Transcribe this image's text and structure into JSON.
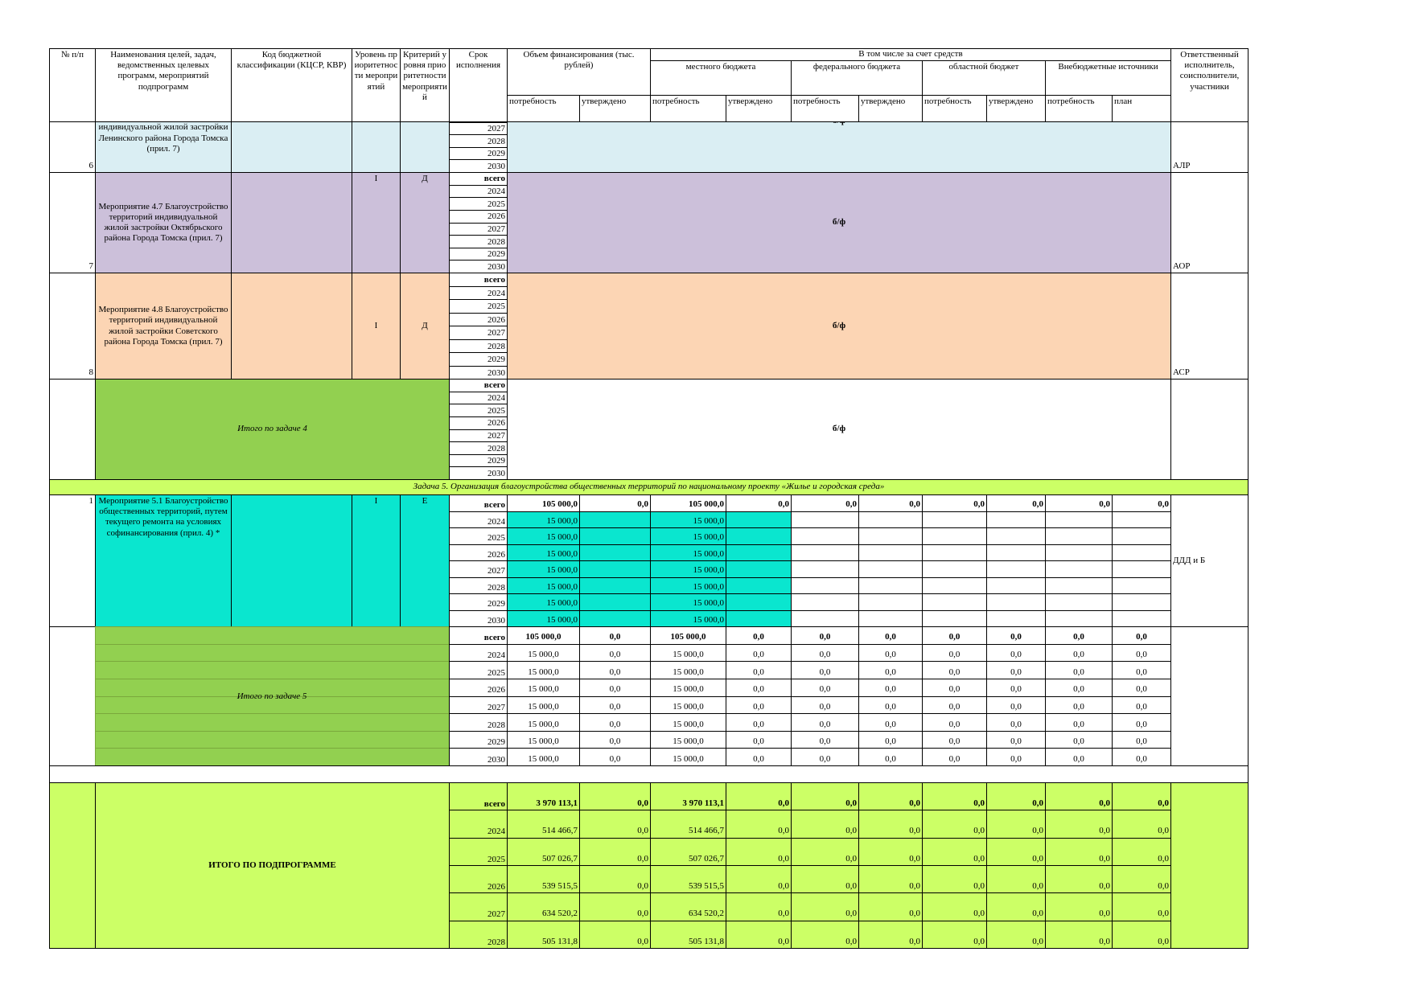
{
  "header": {
    "number": "№ п/п",
    "name": "Наименования целей, задач, ведомственных целевых программ, мероприятий подпрограмм",
    "code": "Код бюджетной классификации (КЦСР, КВР)",
    "priority_level": "Уровень приоритетности мероприятий",
    "priority_criterion": "Критерий уровня приоритетности мероприятий",
    "term": "Срок исполнения",
    "funding": "Объем финансирования (тыс. рублей)",
    "including": "В том числе за счет средств",
    "sources": [
      "местного бюджета",
      "федерального бюджета",
      "областной бюджет",
      "Внебюджетные источники"
    ],
    "responsible": "Ответственный исполнитель, соисполнители, участники",
    "subheaders": [
      "потребность",
      "утверждено",
      "потребность",
      "утверждено",
      "потребность",
      "утверждено",
      "потребность",
      "утверждено",
      "потребность",
      "план"
    ]
  },
  "blocks_without_funding": [
    {
      "number": "6",
      "name": "индивидуальной жилой застройки Ленинского района Города Томска (прил. 7)",
      "years": [
        "2027",
        "2028",
        "2029",
        "2030"
      ],
      "note": "б/ф",
      "responsible": "АЛР",
      "color": "#daeef3"
    },
    {
      "number": "7",
      "name": "Мероприятие 4.7 Благоустройство территорий индивидуальной жилой застройки Октябрьского района Города Томска (прил. 7)",
      "level": "I",
      "criterion": "Д",
      "years": [
        "всего",
        "2024",
        "2025",
        "2026",
        "2027",
        "2028",
        "2029",
        "2030"
      ],
      "note": "б/ф",
      "responsible": "АОР",
      "color": "#ccc0da"
    },
    {
      "number": "8",
      "name": "Мероприятие 4.8 Благоустройство территорий индивидуальной жилой застройки Советского района Города Томска (прил. 7)",
      "level": "I",
      "criterion": "Д",
      "years": [
        "всего",
        "2024",
        "2025",
        "2026",
        "2027",
        "2028",
        "2029",
        "2030"
      ],
      "note": "б/ф",
      "responsible": "АСР",
      "color": "#fcd5b4"
    }
  ],
  "task4_total": {
    "label": "Итого по задаче 4",
    "years": [
      "всего",
      "2024",
      "2025",
      "2026",
      "2027",
      "2028",
      "2029",
      "2030"
    ],
    "note": "б/ф",
    "color": "#92d050"
  },
  "task5": {
    "title": "Задача 5. Организация благоустройства общественных территорий по национальному проекту «Жилье и городская среда»",
    "color": "#ccff66"
  },
  "measure_5_1": {
    "number": "1",
    "name": "Мероприятие 5.1 Благоустройство общественных территорий, путем текущего ремонта на условиях софинансирования (прил. 4) *",
    "level": "I",
    "criterion": "Е",
    "responsible": "ДДД и Б",
    "color": "#0ae6cf",
    "years": [
      "всего",
      "2024",
      "2025",
      "2026",
      "2027",
      "2028",
      "2029",
      "2030"
    ],
    "rows": [
      [
        "105 000,0",
        "0,0",
        "105 000,0",
        "0,0",
        "0,0",
        "0,0",
        "0,0",
        "0,0",
        "0,0",
        "0,0"
      ],
      [
        "15 000,0",
        null,
        "15 000,0",
        null,
        null,
        null,
        null,
        null,
        null,
        null
      ],
      [
        "15 000,0",
        null,
        "15 000,0",
        null,
        null,
        null,
        null,
        null,
        null,
        null
      ],
      [
        "15 000,0",
        null,
        "15 000,0",
        null,
        null,
        null,
        null,
        null,
        null,
        null
      ],
      [
        "15 000,0",
        null,
        "15 000,0",
        null,
        null,
        null,
        null,
        null,
        null,
        null
      ],
      [
        "15 000,0",
        null,
        "15 000,0",
        null,
        null,
        null,
        null,
        null,
        null,
        null
      ],
      [
        "15 000,0",
        null,
        "15 000,0",
        null,
        null,
        null,
        null,
        null,
        null,
        null
      ],
      [
        "15 000,0",
        null,
        "15 000,0",
        null,
        null,
        null,
        null,
        null,
        null,
        null
      ]
    ]
  },
  "task5_total": {
    "label": "Итого по задаче 5",
    "color": "#92d050",
    "years": [
      "всего",
      "2024",
      "2025",
      "2026",
      "2027",
      "2028",
      "2029",
      "2030"
    ],
    "rows": [
      [
        "105 000,0",
        "0,0",
        "105 000,0",
        "0,0",
        "0,0",
        "0,0",
        "0,0",
        "0,0",
        "0,0",
        "0,0"
      ],
      [
        "15 000,0",
        "0,0",
        "15 000,0",
        "0,0",
        "0,0",
        "0,0",
        "0,0",
        "0,0",
        "0,0",
        "0,0"
      ],
      [
        "15 000,0",
        "0,0",
        "15 000,0",
        "0,0",
        "0,0",
        "0,0",
        "0,0",
        "0,0",
        "0,0",
        "0,0"
      ],
      [
        "15 000,0",
        "0,0",
        "15 000,0",
        "0,0",
        "0,0",
        "0,0",
        "0,0",
        "0,0",
        "0,0",
        "0,0"
      ],
      [
        "15 000,0",
        "0,0",
        "15 000,0",
        "0,0",
        "0,0",
        "0,0",
        "0,0",
        "0,0",
        "0,0",
        "0,0"
      ],
      [
        "15 000,0",
        "0,0",
        "15 000,0",
        "0,0",
        "0,0",
        "0,0",
        "0,0",
        "0,0",
        "0,0",
        "0,0"
      ],
      [
        "15 000,0",
        "0,0",
        "15 000,0",
        "0,0",
        "0,0",
        "0,0",
        "0,0",
        "0,0",
        "0,0",
        "0,0"
      ],
      [
        "15 000,0",
        "0,0",
        "15 000,0",
        "0,0",
        "0,0",
        "0,0",
        "0,0",
        "0,0",
        "0,0",
        "0,0"
      ]
    ]
  },
  "subprogram_total": {
    "label": "ИТОГО ПО ПОДПРОГРАММЕ",
    "color": "#ccff66",
    "years": [
      "всего",
      "2024",
      "2025",
      "2026",
      "2027",
      "2028"
    ],
    "rows": [
      [
        "3 970 113,1",
        "0,0",
        "3 970 113,1",
        "0,0",
        "0,0",
        "0,0",
        "0,0",
        "0,0",
        "0,0",
        "0,0"
      ],
      [
        "514 466,7",
        "0,0",
        "514 466,7",
        "0,0",
        "0,0",
        "0,0",
        "0,0",
        "0,0",
        "0,0",
        "0,0"
      ],
      [
        "507 026,7",
        "0,0",
        "507 026,7",
        "0,0",
        "0,0",
        "0,0",
        "0,0",
        "0,0",
        "0,0",
        "0,0"
      ],
      [
        "539 515,5",
        "0,0",
        "539 515,5",
        "0,0",
        "0,0",
        "0,0",
        "0,0",
        "0,0",
        "0,0",
        "0,0"
      ],
      [
        "634 520,2",
        "0,0",
        "634 520,2",
        "0,0",
        "0,0",
        "0,0",
        "0,0",
        "0,0",
        "0,0",
        "0,0"
      ],
      [
        "505 131,8",
        "0,0",
        "505 131,8",
        "0,0",
        "0,0",
        "0,0",
        "0,0",
        "0,0",
        "0,0",
        "0,0"
      ]
    ]
  }
}
